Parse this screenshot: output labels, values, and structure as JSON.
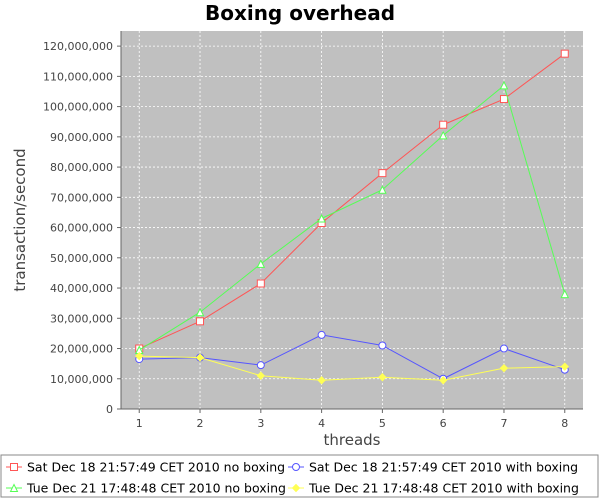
{
  "chart_data": {
    "type": "line",
    "title": "Boxing overhead",
    "xlabel": "threads",
    "ylabel": "transaction/second",
    "x": [
      1,
      2,
      3,
      4,
      5,
      6,
      7,
      8
    ],
    "xlim": [
      0.7,
      8.3
    ],
    "ylim": [
      0,
      125000000
    ],
    "yticks": [
      0,
      10000000,
      20000000,
      30000000,
      40000000,
      50000000,
      60000000,
      70000000,
      80000000,
      90000000,
      100000000,
      110000000,
      120000000
    ],
    "ytick_labels": [
      "0",
      "10,000,000",
      "20,000,000",
      "30,000,000",
      "40,000,000",
      "50,000,000",
      "60,000,000",
      "70,000,000",
      "80,000,000",
      "90,000,000",
      "100,000,000",
      "110,000,000",
      "120,000,000"
    ],
    "xtick_labels": [
      "1",
      "2",
      "3",
      "4",
      "5",
      "6",
      "7",
      "8"
    ],
    "grid": true,
    "legend_position": "bottom",
    "plot_background": "#c0c0c0",
    "series": [
      {
        "name": "Sat Dec 18 21:57:49 CET 2010 no boxing",
        "color": "#ff5555",
        "marker": "square",
        "values": [
          20000000,
          29000000,
          41500000,
          61500000,
          78000000,
          94000000,
          102500000,
          117500000
        ]
      },
      {
        "name": "Sat Dec 18 21:57:49 CET 2010 with boxing",
        "color": "#5555ff",
        "marker": "circle",
        "values": [
          16500000,
          17000000,
          14500000,
          24500000,
          21000000,
          10000000,
          20000000,
          13000000
        ]
      },
      {
        "name": "Tue Dec 21 17:48:48 CET 2010 no boxing",
        "color": "#55ff55",
        "marker": "triangle",
        "values": [
          19500000,
          32000000,
          48000000,
          63000000,
          72500000,
          90500000,
          107000000,
          38000000
        ]
      },
      {
        "name": "Tue Dec 21 17:48:48 CET 2010 with boxing",
        "color": "#ffff55",
        "marker": "diamond",
        "values": [
          17500000,
          17000000,
          11000000,
          9500000,
          10500000,
          9500000,
          13500000,
          14000000
        ]
      }
    ]
  }
}
